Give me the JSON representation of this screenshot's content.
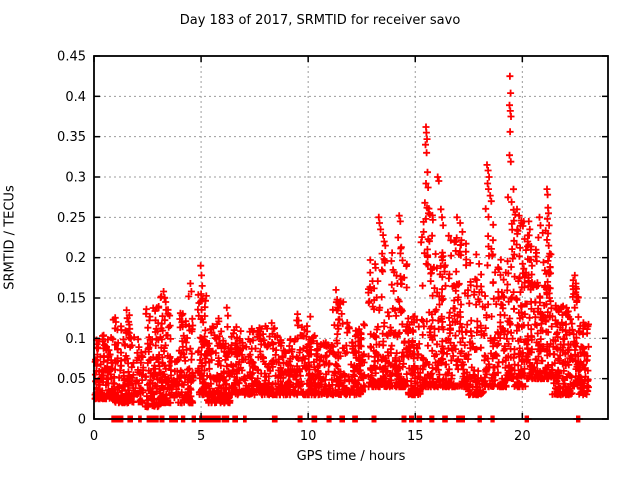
{
  "page": {
    "title": "Day 183 of 2017, SRMTID for receiver savo"
  },
  "chart_data": {
    "type": "scatter",
    "title": "Day 183 of 2017, SRMTID for receiver savo",
    "xlabel": "GPS time / hours",
    "ylabel": "SRMTID / TECUs",
    "xlim": [
      0,
      24
    ],
    "ylim": [
      0,
      0.45
    ],
    "xticks": [
      [
        0,
        "0"
      ],
      [
        5,
        "5"
      ],
      [
        10,
        "10"
      ],
      [
        15,
        "15"
      ],
      [
        20,
        "20"
      ]
    ],
    "yticks": [
      [
        0,
        "0"
      ],
      [
        0.05,
        "0.05"
      ],
      [
        0.1,
        "0.1"
      ],
      [
        0.15,
        "0.15"
      ],
      [
        0.2,
        "0.2"
      ],
      [
        0.25,
        "0.25"
      ],
      [
        0.3,
        "0.3"
      ],
      [
        0.35,
        "0.35"
      ],
      [
        0.4,
        "0.4"
      ],
      [
        0.45,
        "0.45"
      ]
    ],
    "grid": "dashed",
    "legend": "none",
    "marker": "plus",
    "marker_color": "#ff0000",
    "grid_color": "#9c9c9c",
    "axis_color": "#000000",
    "seed": 20170183,
    "points": [
      [
        1.52,
        0.135
      ],
      [
        1.55,
        0.125
      ],
      [
        2.93,
        0.138
      ],
      [
        3.25,
        0.158
      ],
      [
        3.3,
        0.15
      ],
      [
        3.35,
        0.145
      ],
      [
        4.42,
        0.152
      ],
      [
        4.5,
        0.168
      ],
      [
        4.55,
        0.158
      ],
      [
        4.98,
        0.19
      ],
      [
        5.02,
        0.178
      ],
      [
        5.05,
        0.165
      ],
      [
        5.0,
        0.155
      ],
      [
        6.2,
        0.138
      ],
      [
        6.25,
        0.128
      ],
      [
        9.5,
        0.13
      ],
      [
        9.55,
        0.122
      ],
      [
        10.1,
        0.127
      ],
      [
        11.3,
        0.16
      ],
      [
        11.35,
        0.148
      ],
      [
        11.45,
        0.143
      ],
      [
        13.3,
        0.25
      ],
      [
        13.33,
        0.243
      ],
      [
        13.38,
        0.235
      ],
      [
        13.5,
        0.228
      ],
      [
        13.55,
        0.22
      ],
      [
        13.6,
        0.215
      ],
      [
        13.45,
        0.205
      ],
      [
        14.25,
        0.252
      ],
      [
        14.3,
        0.245
      ],
      [
        14.2,
        0.225
      ],
      [
        14.35,
        0.213
      ],
      [
        15.5,
        0.362
      ],
      [
        15.52,
        0.355
      ],
      [
        15.55,
        0.347
      ],
      [
        15.48,
        0.34
      ],
      [
        15.53,
        0.33
      ],
      [
        15.57,
        0.306
      ],
      [
        15.5,
        0.292
      ],
      [
        15.6,
        0.287
      ],
      [
        15.45,
        0.268
      ],
      [
        15.55,
        0.262
      ],
      [
        15.62,
        0.255
      ],
      [
        16.05,
        0.3
      ],
      [
        16.1,
        0.295
      ],
      [
        16.2,
        0.26
      ],
      [
        16.25,
        0.25
      ],
      [
        16.3,
        0.24
      ],
      [
        16.95,
        0.25
      ],
      [
        17.1,
        0.243
      ],
      [
        17.2,
        0.232
      ],
      [
        18.35,
        0.315
      ],
      [
        18.4,
        0.308
      ],
      [
        18.45,
        0.3
      ],
      [
        18.38,
        0.292
      ],
      [
        18.42,
        0.285
      ],
      [
        18.5,
        0.277
      ],
      [
        18.55,
        0.27
      ],
      [
        19.42,
        0.425
      ],
      [
        19.45,
        0.404
      ],
      [
        19.4,
        0.389
      ],
      [
        19.44,
        0.382
      ],
      [
        19.47,
        0.375
      ],
      [
        19.43,
        0.356
      ],
      [
        19.4,
        0.327
      ],
      [
        19.46,
        0.319
      ],
      [
        19.5,
        0.269
      ],
      [
        19.75,
        0.26
      ],
      [
        19.85,
        0.252
      ],
      [
        19.95,
        0.246
      ],
      [
        20.3,
        0.245
      ],
      [
        20.35,
        0.235
      ],
      [
        20.25,
        0.22
      ],
      [
        20.4,
        0.21
      ],
      [
        20.45,
        0.19
      ],
      [
        20.28,
        0.175
      ],
      [
        20.38,
        0.165
      ],
      [
        20.8,
        0.25
      ],
      [
        20.85,
        0.24
      ],
      [
        20.75,
        0.225
      ],
      [
        21.15,
        0.285
      ],
      [
        21.18,
        0.278
      ],
      [
        21.2,
        0.262
      ],
      [
        21.22,
        0.255
      ],
      [
        21.17,
        0.248
      ],
      [
        21.25,
        0.24
      ],
      [
        21.2,
        0.23
      ],
      [
        21.15,
        0.222
      ],
      [
        21.23,
        0.215
      ],
      [
        21.28,
        0.205
      ],
      [
        21.2,
        0.196
      ],
      [
        21.3,
        0.188
      ],
      [
        21.25,
        0.18
      ],
      [
        21.18,
        0.17
      ],
      [
        21.3,
        0.162
      ],
      [
        21.27,
        0.15
      ],
      [
        22.45,
        0.178
      ],
      [
        22.5,
        0.168
      ],
      [
        22.4,
        0.155
      ],
      [
        22.55,
        0.147
      ]
    ],
    "clusters": [
      {
        "x0": 0.05,
        "x1": 0.9,
        "n": 120,
        "ymin": 0.025,
        "ymax": 0.105,
        "pow": 2.0
      },
      {
        "x0": 0.9,
        "x1": 1.7,
        "n": 110,
        "ymin": 0.02,
        "ymax": 0.13,
        "pow": 2.2
      },
      {
        "x0": 1.7,
        "x1": 2.3,
        "n": 55,
        "ymin": 0.02,
        "ymax": 0.105,
        "pow": 1.8
      },
      {
        "x0": 2.4,
        "x1": 3.05,
        "n": 90,
        "ymin": 0.015,
        "ymax": 0.14,
        "pow": 2.0
      },
      {
        "x0": 3.05,
        "x1": 3.6,
        "n": 80,
        "ymin": 0.02,
        "ymax": 0.155,
        "pow": 2.2
      },
      {
        "x0": 3.6,
        "x1": 3.95,
        "n": 25,
        "ymin": 0.02,
        "ymax": 0.09,
        "pow": 1.5
      },
      {
        "x0": 3.95,
        "x1": 4.65,
        "n": 90,
        "ymin": 0.02,
        "ymax": 0.135,
        "pow": 2.0
      },
      {
        "x0": 4.85,
        "x1": 5.25,
        "n": 70,
        "ymin": 0.03,
        "ymax": 0.155,
        "pow": 1.8
      },
      {
        "x0": 5.25,
        "x1": 6.35,
        "n": 150,
        "ymin": 0.02,
        "ymax": 0.125,
        "pow": 2.0
      },
      {
        "x0": 6.35,
        "x1": 7.6,
        "n": 130,
        "ymin": 0.03,
        "ymax": 0.115,
        "pow": 1.8
      },
      {
        "x0": 7.6,
        "x1": 8.6,
        "n": 110,
        "ymin": 0.03,
        "ymax": 0.12,
        "pow": 1.8
      },
      {
        "x0": 8.6,
        "x1": 9.4,
        "n": 90,
        "ymin": 0.03,
        "ymax": 0.1,
        "pow": 1.6
      },
      {
        "x0": 9.4,
        "x1": 10.35,
        "n": 110,
        "ymin": 0.03,
        "ymax": 0.125,
        "pow": 1.8
      },
      {
        "x0": 10.35,
        "x1": 11.15,
        "n": 90,
        "ymin": 0.03,
        "ymax": 0.1,
        "pow": 1.6
      },
      {
        "x0": 11.15,
        "x1": 11.65,
        "n": 60,
        "ymin": 0.03,
        "ymax": 0.15,
        "pow": 2.0
      },
      {
        "x0": 11.65,
        "x1": 12.65,
        "n": 110,
        "ymin": 0.03,
        "ymax": 0.12,
        "pow": 1.7
      },
      {
        "x0": 12.8,
        "x1": 13.85,
        "n": 130,
        "ymin": 0.04,
        "ymax": 0.2,
        "pow": 2.2
      },
      {
        "x0": 13.85,
        "x1": 14.65,
        "n": 110,
        "ymin": 0.04,
        "ymax": 0.215,
        "pow": 2.4
      },
      {
        "x0": 14.65,
        "x1": 15.25,
        "n": 80,
        "ymin": 0.03,
        "ymax": 0.13,
        "pow": 1.6
      },
      {
        "x0": 15.25,
        "x1": 15.95,
        "n": 90,
        "ymin": 0.04,
        "ymax": 0.265,
        "pow": 2.4
      },
      {
        "x0": 15.95,
        "x1": 16.65,
        "n": 90,
        "ymin": 0.04,
        "ymax": 0.24,
        "pow": 2.3
      },
      {
        "x0": 16.65,
        "x1": 17.45,
        "n": 100,
        "ymin": 0.04,
        "ymax": 0.23,
        "pow": 2.3
      },
      {
        "x0": 17.45,
        "x1": 18.25,
        "n": 90,
        "ymin": 0.03,
        "ymax": 0.21,
        "pow": 2.2
      },
      {
        "x0": 18.25,
        "x1": 18.7,
        "n": 60,
        "ymin": 0.04,
        "ymax": 0.265,
        "pow": 2.3
      },
      {
        "x0": 18.7,
        "x1": 19.3,
        "n": 70,
        "ymin": 0.04,
        "ymax": 0.2,
        "pow": 2.0
      },
      {
        "x0": 19.3,
        "x1": 19.6,
        "n": 45,
        "ymin": 0.05,
        "ymax": 0.3,
        "pow": 2.2
      },
      {
        "x0": 19.6,
        "x1": 20.15,
        "n": 90,
        "ymin": 0.04,
        "ymax": 0.255,
        "pow": 2.2
      },
      {
        "x0": 20.15,
        "x1": 20.65,
        "n": 70,
        "ymin": 0.05,
        "ymax": 0.24,
        "pow": 2.2
      },
      {
        "x0": 20.65,
        "x1": 21.05,
        "n": 55,
        "ymin": 0.05,
        "ymax": 0.245,
        "pow": 2.2
      },
      {
        "x0": 21.05,
        "x1": 21.4,
        "n": 55,
        "ymin": 0.05,
        "ymax": 0.28,
        "pow": 2.3
      },
      {
        "x0": 21.4,
        "x1": 22.35,
        "n": 130,
        "ymin": 0.03,
        "ymax": 0.145,
        "pow": 1.7
      },
      {
        "x0": 22.35,
        "x1": 22.65,
        "n": 45,
        "ymin": 0.04,
        "ymax": 0.175,
        "pow": 2.0
      },
      {
        "x0": 22.65,
        "x1": 23.1,
        "n": 60,
        "ymin": 0.03,
        "ymax": 0.12,
        "pow": 1.6
      }
    ],
    "zero_runs": [
      [
        0.85,
        1.35
      ],
      [
        1.6,
        1.8
      ],
      [
        2.1,
        2.2
      ],
      [
        2.5,
        3.0
      ],
      [
        3.1,
        3.25
      ],
      [
        3.55,
        3.9
      ],
      [
        4.1,
        4.25
      ],
      [
        4.6,
        4.75
      ],
      [
        4.95,
        5.9
      ],
      [
        6.0,
        6.3
      ],
      [
        6.5,
        6.7
      ],
      [
        7.0,
        7.1
      ],
      [
        8.35,
        8.55
      ],
      [
        9.55,
        9.7
      ],
      [
        10.2,
        10.4
      ],
      [
        10.9,
        11.05
      ],
      [
        11.5,
        11.7
      ],
      [
        12.1,
        12.3
      ],
      [
        13.0,
        13.15
      ],
      [
        14.4,
        14.55
      ],
      [
        14.75,
        14.9
      ],
      [
        15.1,
        15.3
      ],
      [
        15.7,
        15.85
      ],
      [
        16.3,
        16.5
      ],
      [
        16.95,
        17.3
      ],
      [
        17.95,
        18.1
      ],
      [
        18.55,
        18.7
      ],
      [
        20.15,
        20.3
      ],
      [
        22.55,
        22.7
      ]
    ],
    "zero_step_hours": 0.03
  }
}
